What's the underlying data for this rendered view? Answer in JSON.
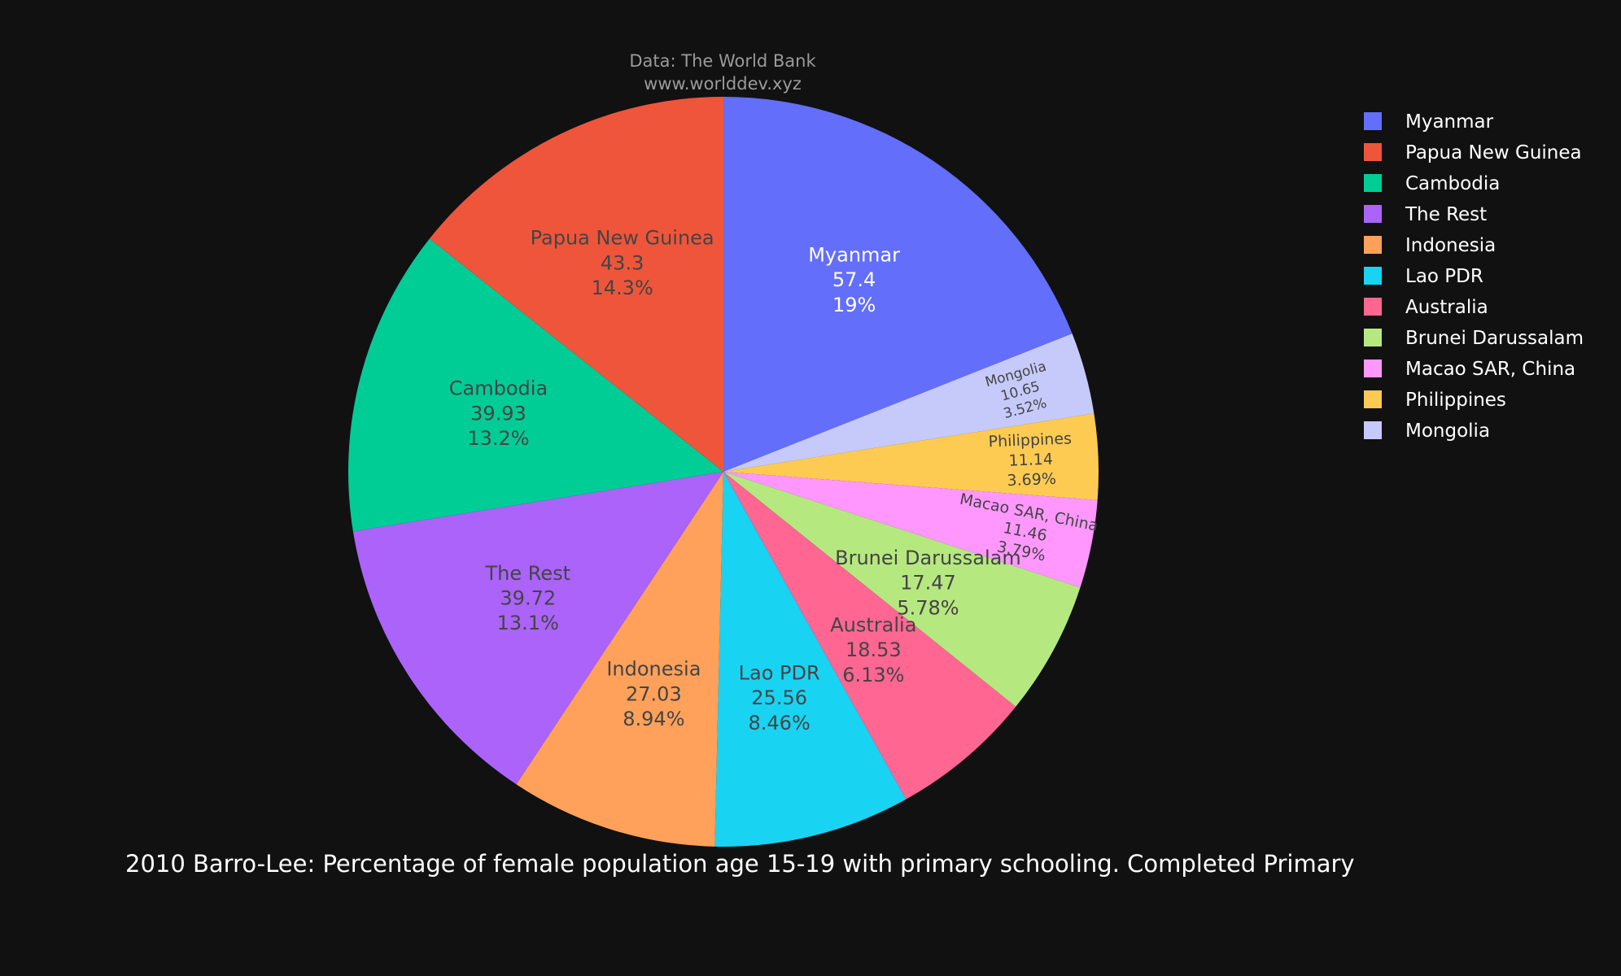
{
  "chart_data": {
    "type": "pie",
    "title": "2010 Barro-Lee: Percentage of female population age 15-19 with primary schooling. Completed Primary",
    "source_lines": [
      "Data: The World Bank",
      "www.worlddev.xyz"
    ],
    "legend_position": "right",
    "slices": [
      {
        "label": "Myanmar",
        "value": 57.4,
        "percent": "19%",
        "color": "#636efa"
      },
      {
        "label": "Papua New Guinea",
        "value": 43.3,
        "percent": "14.3%",
        "color": "#ef553b"
      },
      {
        "label": "Cambodia",
        "value": 39.93,
        "percent": "13.2%",
        "color": "#00cc96"
      },
      {
        "label": "The Rest",
        "value": 39.72,
        "percent": "13.1%",
        "color": "#ab63fa"
      },
      {
        "label": "Indonesia",
        "value": 27.03,
        "percent": "8.94%",
        "color": "#ffa15a"
      },
      {
        "label": "Lao PDR",
        "value": 25.56,
        "percent": "8.46%",
        "color": "#19d3f3"
      },
      {
        "label": "Australia",
        "value": 18.53,
        "percent": "6.13%",
        "color": "#ff6692"
      },
      {
        "label": "Brunei Darussalam",
        "value": 17.47,
        "percent": "5.78%",
        "color": "#b6e880"
      },
      {
        "label": "Macao SAR, China",
        "value": 11.46,
        "percent": "3.79%",
        "color": "#ff97ff"
      },
      {
        "label": "Philippines",
        "value": 11.14,
        "percent": "3.69%",
        "color": "#fecb52"
      },
      {
        "label": "Mongolia",
        "value": 10.65,
        "percent": "3.52%",
        "color": "#c6cafa"
      }
    ],
    "pie_order": [
      "Myanmar",
      "Mongolia",
      "Philippines",
      "Macao SAR, China",
      "Brunei Darussalam",
      "Australia",
      "Lao PDR",
      "Indonesia",
      "The Rest",
      "Cambodia",
      "Papua New Guinea"
    ]
  }
}
